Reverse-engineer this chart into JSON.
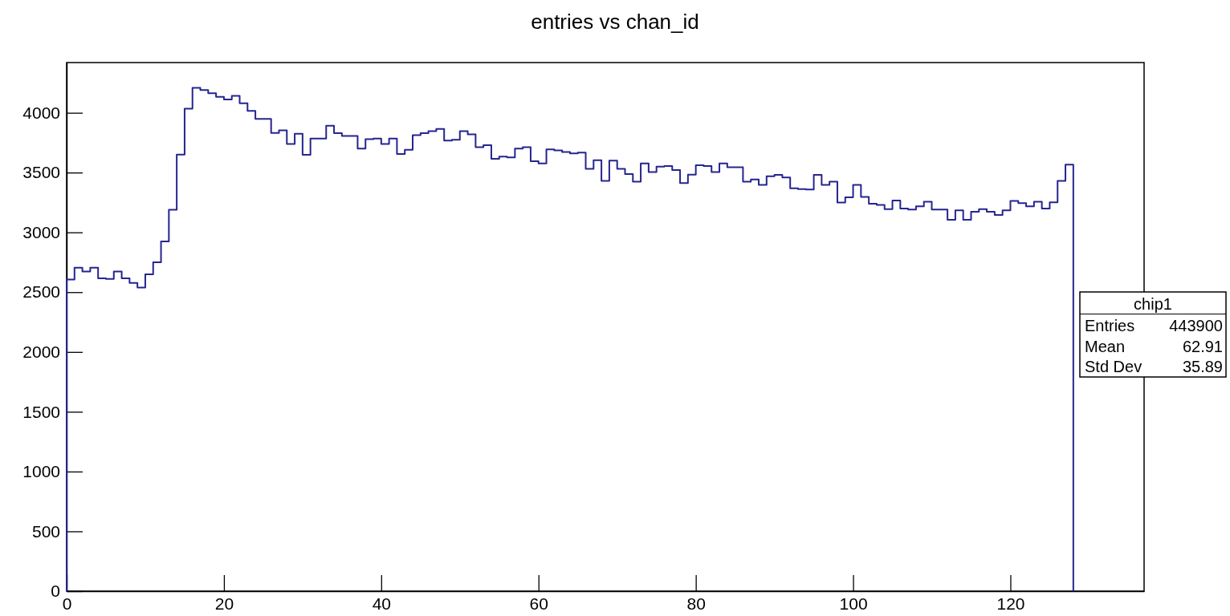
{
  "chart_data": {
    "type": "histogram",
    "title": "entries vs chan_id",
    "bins": [
      0,
      1,
      2,
      3,
      4,
      5,
      6,
      7,
      8,
      9,
      10,
      11,
      12,
      13,
      14,
      15,
      16,
      17,
      18,
      19,
      20,
      21,
      22,
      23,
      24,
      25,
      26,
      27,
      28,
      29,
      30,
      31,
      32,
      33,
      34,
      35,
      36,
      37,
      38,
      39,
      40,
      41,
      42,
      43,
      44,
      45,
      46,
      47,
      48,
      49,
      50,
      51,
      52,
      53,
      54,
      55,
      56,
      57,
      58,
      59,
      60,
      61,
      62,
      63,
      64,
      65,
      66,
      67,
      68,
      69,
      70,
      71,
      72,
      73,
      74,
      75,
      76,
      77,
      78,
      79,
      80,
      81,
      82,
      83,
      84,
      85,
      86,
      87,
      88,
      89,
      90,
      91,
      92,
      93,
      94,
      95,
      96,
      97,
      98,
      99,
      100,
      101,
      102,
      103,
      104,
      105,
      106,
      107,
      108,
      109,
      110,
      111,
      112,
      113,
      114,
      115,
      116,
      117,
      118,
      119,
      120,
      121,
      122,
      123,
      124,
      125,
      126,
      127,
      128
    ],
    "values": [
      2605,
      2705,
      2672,
      2705,
      2616,
      2610,
      2672,
      2616,
      2578,
      2538,
      2650,
      2750,
      2924,
      3190,
      3650,
      4034,
      4208,
      4190,
      4163,
      4134,
      4112,
      4141,
      4079,
      4016,
      3948,
      3948,
      3831,
      3854,
      3739,
      3825,
      3649,
      3784,
      3784,
      3892,
      3829,
      3807,
      3807,
      3701,
      3780,
      3784,
      3739,
      3784,
      3656,
      3690,
      3813,
      3829,
      3847,
      3865,
      3768,
      3775,
      3847,
      3820,
      3712,
      3730,
      3615,
      3634,
      3627,
      3701,
      3712,
      3595,
      3577,
      3694,
      3685,
      3672,
      3661,
      3667,
      3532,
      3604,
      3431,
      3600,
      3532,
      3487,
      3424,
      3577,
      3505,
      3550,
      3555,
      3521,
      3413,
      3483,
      3562,
      3555,
      3505,
      3577,
      3544,
      3544,
      3424,
      3442,
      3397,
      3469,
      3481,
      3460,
      3368,
      3362,
      3358,
      3481,
      3397,
      3424,
      3249,
      3294,
      3397,
      3296,
      3240,
      3229,
      3195,
      3267,
      3200,
      3191,
      3218,
      3256,
      3191,
      3191,
      3105,
      3184,
      3105,
      3173,
      3195,
      3173,
      3146,
      3184,
      3263,
      3245,
      3218,
      3256,
      3200,
      3251,
      3431,
      3566
    ],
    "color": "#25258f",
    "xlim": [
      0,
      137
    ],
    "xticks": [
      0,
      20,
      40,
      60,
      80,
      100,
      120
    ],
    "ylim": [
      0,
      4420
    ],
    "yticks": [
      0,
      500,
      1000,
      1500,
      2000,
      2500,
      3000,
      3500,
      4000
    ],
    "grid": false,
    "annotations": [
      "chip1",
      "Entries",
      "443900",
      "Mean",
      "62.91",
      "Std Dev",
      "35.89"
    ]
  }
}
